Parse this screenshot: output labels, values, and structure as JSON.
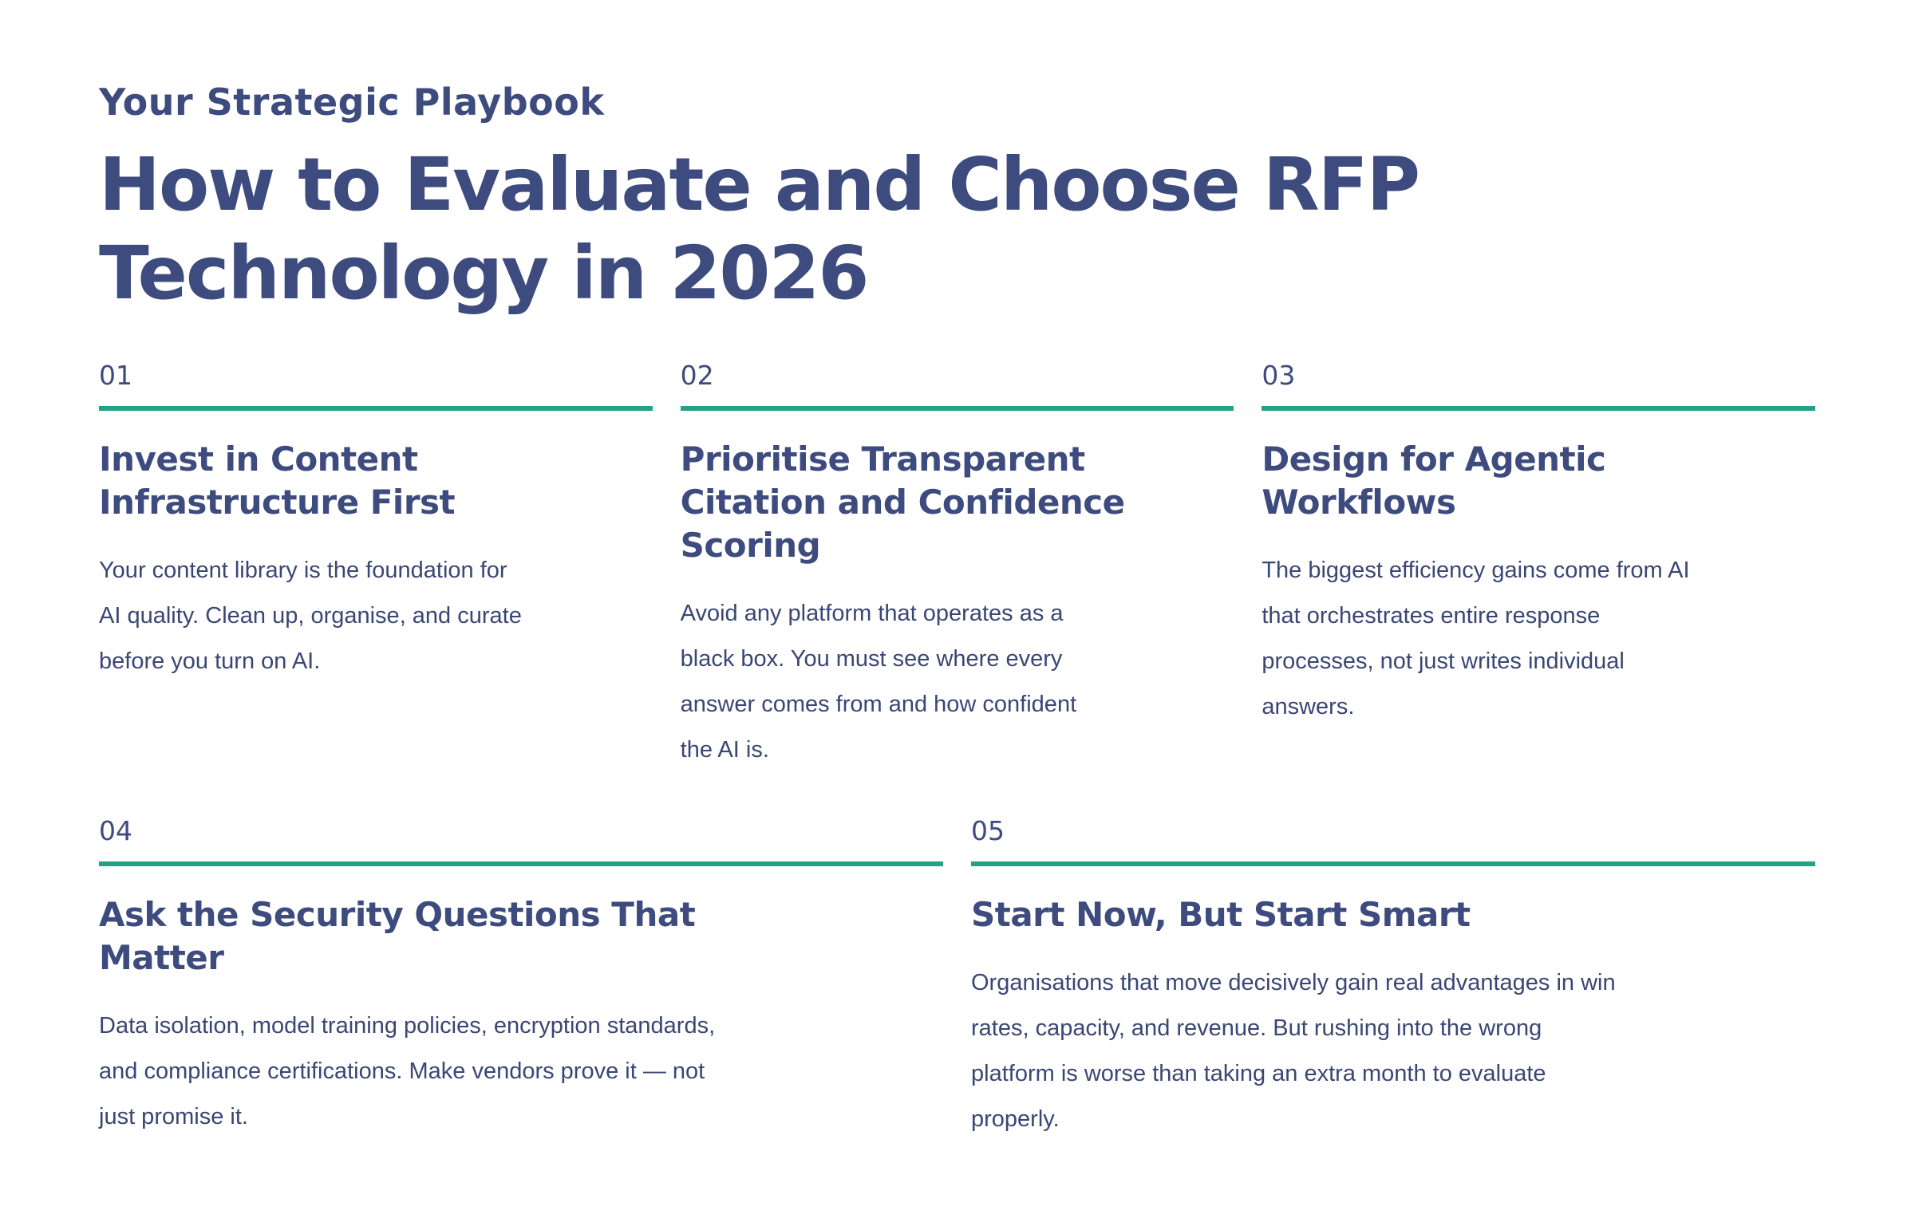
{
  "header": {
    "eyebrow": "Your Strategic Playbook",
    "title": "How to Evaluate and Choose RFP\nTechnology in 2026"
  },
  "colors": {
    "accent_green": "#27a186",
    "heading_navy": "#3d4b7e",
    "body_navy": "#3a4674",
    "background": "#ffffff"
  },
  "items": [
    {
      "number": "01",
      "heading": "Invest in Content\nInfrastructure First",
      "body": "Your content library is the foundation for\nAI quality. Clean up, organise, and curate\nbefore you turn on AI."
    },
    {
      "number": "02",
      "heading": "Prioritise Transparent\nCitation and Confidence\nScoring",
      "body": "Avoid any platform that operates as a\nblack box. You must see where every\nanswer comes from and how confident\nthe AI is."
    },
    {
      "number": "03",
      "heading": "Design for Agentic\nWorkflows",
      "body": "The biggest efficiency gains come from AI\nthat orchestrates entire response\nprocesses, not just writes individual\nanswers."
    },
    {
      "number": "04",
      "heading": "Ask the Security Questions That\nMatter",
      "body": "Data isolation, model training policies, encryption standards,\nand compliance certifications. Make vendors prove it — not\njust promise it."
    },
    {
      "number": "05",
      "heading": "Start Now, But Start Smart",
      "body": "Organisations that move decisively gain real advantages in win\nrates, capacity, and revenue. But rushing into the wrong\nplatform is worse than taking an extra month to evaluate\nproperly."
    }
  ]
}
